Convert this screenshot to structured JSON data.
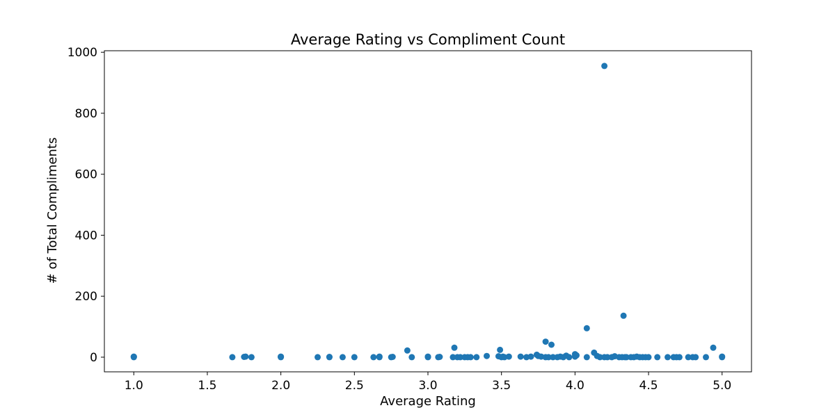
{
  "chart_data": {
    "type": "scatter",
    "title": "Average Rating vs Compliment Count",
    "xlabel": "Average Rating",
    "ylabel": "# of Total Compliments",
    "xlim": [
      0.8,
      5.2
    ],
    "ylim": [
      -48,
      1005
    ],
    "xticks": [
      "1.0",
      "1.5",
      "2.0",
      "2.5",
      "3.0",
      "3.5",
      "4.0",
      "4.5",
      "5.0"
    ],
    "yticks": [
      "0",
      "200",
      "400",
      "600",
      "800",
      "1000"
    ],
    "grid": false,
    "marker_color": "#1f77b4",
    "x": [
      1.0,
      1.0,
      1.0,
      1.67,
      1.75,
      1.76,
      1.8,
      2.0,
      2.0,
      2.0,
      2.25,
      2.33,
      2.33,
      2.42,
      2.5,
      2.63,
      2.67,
      2.67,
      2.75,
      2.76,
      2.86,
      2.89,
      3.0,
      3.0,
      3.0,
      3.07,
      3.08,
      3.17,
      3.18,
      3.2,
      3.22,
      3.25,
      3.27,
      3.29,
      3.33,
      3.4,
      3.48,
      3.49,
      3.5,
      3.51,
      3.52,
      3.55,
      3.63,
      3.67,
      3.7,
      3.74,
      3.75,
      3.77,
      3.8,
      3.8,
      3.82,
      3.84,
      3.85,
      3.88,
      3.9,
      3.92,
      3.94,
      3.96,
      4.0,
      4.0,
      4.01,
      4.08,
      4.08,
      4.13,
      4.15,
      4.17,
      4.2,
      4.2,
      4.22,
      4.25,
      4.27,
      4.3,
      4.32,
      4.33,
      4.34,
      4.35,
      4.38,
      4.4,
      4.42,
      4.44,
      4.46,
      4.48,
      4.5,
      4.56,
      4.63,
      4.67,
      4.69,
      4.71,
      4.77,
      4.8,
      4.82,
      4.89,
      4.94,
      5.0,
      5.0
    ],
    "y": [
      0,
      2,
      1,
      0,
      1,
      2,
      0,
      0,
      1,
      2,
      0,
      0,
      1,
      0,
      0,
      0,
      0,
      2,
      0,
      1,
      22,
      0,
      0,
      1,
      2,
      0,
      1,
      0,
      31,
      0,
      0,
      0,
      0,
      0,
      0,
      4,
      3,
      24,
      0,
      2,
      0,
      2,
      2,
      0,
      2,
      8,
      4,
      2,
      51,
      0,
      0,
      41,
      0,
      0,
      2,
      0,
      5,
      0,
      2,
      10,
      6,
      95,
      0,
      15,
      4,
      0,
      955,
      0,
      0,
      0,
      3,
      0,
      0,
      136,
      0,
      0,
      0,
      0,
      2,
      0,
      0,
      0,
      0,
      0,
      0,
      0,
      0,
      0,
      0,
      0,
      0,
      0,
      31,
      0,
      2
    ]
  }
}
